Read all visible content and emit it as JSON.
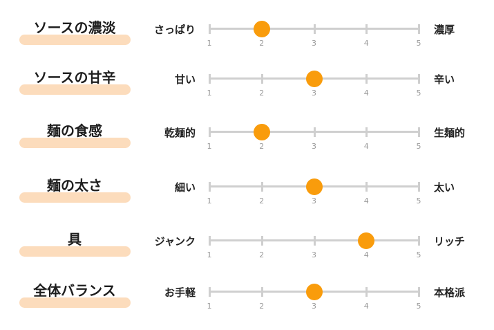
{
  "scale": {
    "min": 1,
    "max": 5,
    "ticks": [
      "1",
      "2",
      "3",
      "4",
      "5"
    ]
  },
  "colors": {
    "marker": "#f99c0c",
    "highlight": "#fcdcbc",
    "track": "#cfcfcf"
  },
  "rows": [
    {
      "title": "ソースの濃淡",
      "left": "さっぱり",
      "right": "濃厚",
      "value": 2
    },
    {
      "title": "ソースの甘辛",
      "left": "甘い",
      "right": "辛い",
      "value": 3
    },
    {
      "title": "麺の食感",
      "left": "乾麺的",
      "right": "生麺的",
      "value": 2
    },
    {
      "title": "麺の太さ",
      "left": "細い",
      "right": "太い",
      "value": 3
    },
    {
      "title": "具",
      "left": "ジャンク",
      "right": "リッチ",
      "value": 4
    },
    {
      "title": "全体バランス",
      "left": "お手軽",
      "right": "本格派",
      "value": 3
    }
  ]
}
